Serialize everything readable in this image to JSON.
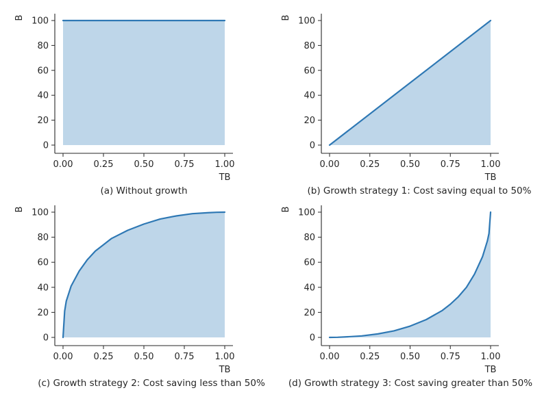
{
  "colors": {
    "line": "#2e78b4",
    "fill": "#bed6e9",
    "axis": "#262626"
  },
  "chart_data": [
    {
      "type": "area",
      "panel": "a",
      "caption": "(a) Without growth",
      "xlabel": "TB",
      "ylabel": "B",
      "xlim": [
        0,
        1
      ],
      "ylim": [
        0,
        100
      ],
      "xticks": [
        "0.00",
        "0.25",
        "0.50",
        "0.75",
        "1.00"
      ],
      "yticks": [
        "0",
        "20",
        "40",
        "60",
        "80",
        "100"
      ],
      "series": [
        {
          "name": "B",
          "x": [
            0,
            1
          ],
          "y": [
            100,
            100
          ]
        }
      ]
    },
    {
      "type": "area",
      "panel": "b",
      "caption": "(b) Growth strategy 1: Cost saving equal to 50%",
      "xlabel": "TB",
      "ylabel": "B",
      "xlim": [
        0,
        1
      ],
      "ylim": [
        0,
        100
      ],
      "xticks": [
        "0.00",
        "0.25",
        "0.50",
        "0.75",
        "1.00"
      ],
      "yticks": [
        "0",
        "20",
        "40",
        "60",
        "80",
        "100"
      ],
      "series": [
        {
          "name": "B",
          "x": [
            0,
            1
          ],
          "y": [
            0,
            100
          ]
        }
      ]
    },
    {
      "type": "area",
      "panel": "c",
      "caption": "(c) Growth strategy 2: Cost saving less than 50%",
      "xlabel": "TB",
      "ylabel": "B",
      "xlim": [
        0,
        1
      ],
      "ylim": [
        0,
        100
      ],
      "xticks": [
        "0.00",
        "0.25",
        "0.50",
        "0.75",
        "1.00"
      ],
      "yticks": [
        "0",
        "20",
        "40",
        "60",
        "80",
        "100"
      ],
      "series": [
        {
          "name": "B",
          "x": [
            0,
            0.01,
            0.02,
            0.05,
            0.1,
            0.15,
            0.2,
            0.25,
            0.3,
            0.4,
            0.5,
            0.6,
            0.7,
            0.8,
            0.9,
            0.95,
            1.0
          ],
          "y": [
            0,
            21,
            29,
            41,
            53,
            62,
            69,
            74,
            79,
            85.5,
            90.5,
            94.5,
            97,
            98.8,
            99.6,
            99.9,
            100
          ]
        }
      ]
    },
    {
      "type": "area",
      "panel": "d",
      "caption": "(d) Growth strategy 3: Cost saving greater than 50%",
      "xlabel": "TB",
      "ylabel": "B",
      "xlim": [
        0,
        1
      ],
      "ylim": [
        0,
        100
      ],
      "xticks": [
        "0.00",
        "0.25",
        "0.50",
        "0.75",
        "1.00"
      ],
      "yticks": [
        "0",
        "20",
        "40",
        "60",
        "80",
        "100"
      ],
      "series": [
        {
          "name": "B",
          "x": [
            0,
            0.05,
            0.1,
            0.2,
            0.3,
            0.4,
            0.5,
            0.6,
            0.7,
            0.75,
            0.8,
            0.85,
            0.9,
            0.95,
            0.98,
            0.99,
            1.0
          ],
          "y": [
            0,
            0.1,
            0.4,
            1.2,
            2.8,
            5.2,
            9,
            14.2,
            21.5,
            26.5,
            32.5,
            40,
            50.5,
            64.5,
            77,
            83,
            100
          ]
        }
      ]
    }
  ]
}
